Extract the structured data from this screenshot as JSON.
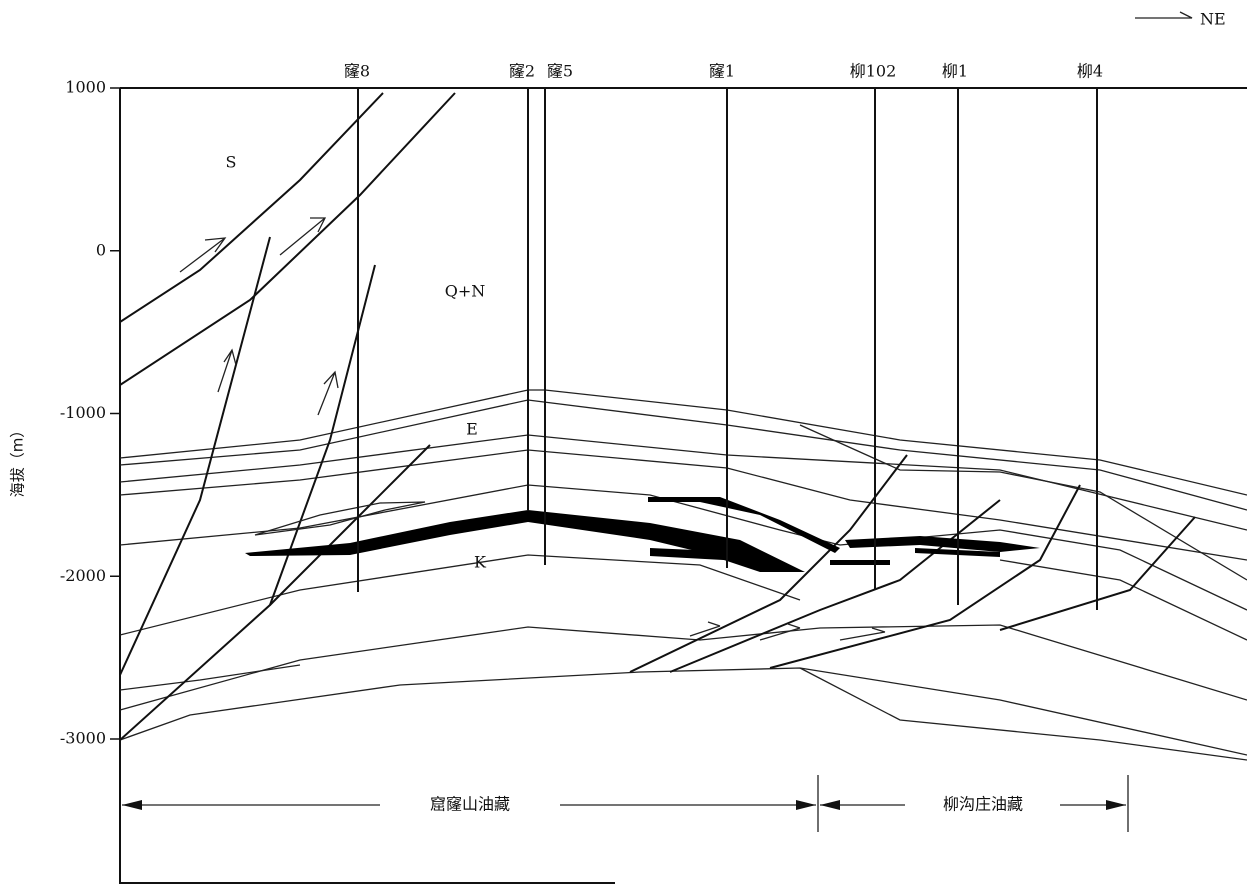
{
  "direction": "NE",
  "wells": [
    "窿8",
    "窿2",
    "窿5",
    "窿1",
    "柳102",
    "柳1",
    "柳4"
  ],
  "y_axis": {
    "label": "海拔（m）",
    "ticks": [
      1000,
      0,
      -1000,
      -2000,
      -3000
    ]
  },
  "layers": [
    "S",
    "Q+N",
    "E",
    "K"
  ],
  "reservoirs": [
    "窟窿山油藏",
    "柳沟庄油藏"
  ]
}
